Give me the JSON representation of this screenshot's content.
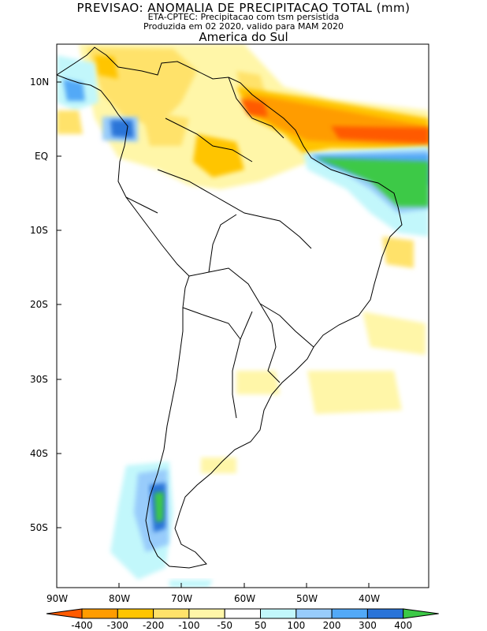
{
  "title": {
    "main": "PREVISAO: ANOMALIA DE PRECIPITACAO TOTAL (mm)",
    "model": "ETA-CPTEC: Precipitacao com tsm persistida",
    "produced": "Produzida em 02 2020, valido para MAM 2020",
    "region": "America do Sul"
  },
  "axes": {
    "latitude_labels": [
      "10N",
      "EQ",
      "10S",
      "20S",
      "30S",
      "40S",
      "50S"
    ],
    "longitude_labels": [
      "90W",
      "80W",
      "70W",
      "60W",
      "50W",
      "40W"
    ]
  },
  "legend": {
    "colors": [
      "#ff5a00",
      "#ff9c00",
      "#ffc500",
      "#ffe26a",
      "#fff6a8",
      "#ffffff",
      "#c2f7fb",
      "#98ccfb",
      "#52a9f7",
      "#2a74d8",
      "#3cc946"
    ],
    "labels": [
      "-400",
      "-300",
      "-200",
      "-100",
      "-50",
      "50",
      "100",
      "200",
      "300",
      "400"
    ]
  }
}
